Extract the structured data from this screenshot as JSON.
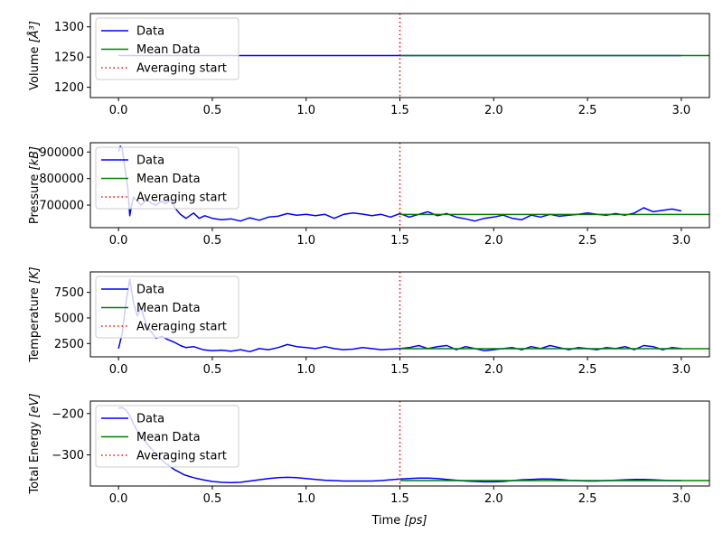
{
  "figure": {
    "xlabel": "Time [ps]",
    "xlabel_main": "Time ",
    "xlabel_unit": "[ps]"
  },
  "colors": {
    "data": "#0000ff",
    "mean": "#008000",
    "avg_start": "#ff0000",
    "axis": "#000000"
  },
  "chart_data": [
    {
      "type": "line",
      "ylabel": "Volume [Å³]",
      "ylabel_main": "Volume ",
      "ylabel_unit": "[Å³]",
      "xlim": [
        -0.15,
        3.15
      ],
      "ylim": [
        1183,
        1322
      ],
      "xticks": [
        0.0,
        0.5,
        1.0,
        1.5,
        2.0,
        2.5,
        3.0
      ],
      "xtick_labels": [
        "0.0",
        "0.5",
        "1.0",
        "1.5",
        "2.0",
        "2.5",
        "3.0"
      ],
      "yticks": [
        1200,
        1250,
        1300
      ],
      "ytick_labels": [
        "1200",
        "1250",
        "1300"
      ],
      "legend": {
        "placement": "upper-left",
        "entries": [
          "Data",
          "Mean Data",
          "Averaging start"
        ]
      },
      "averaging_start": 1.5,
      "mean_value": 1252.5,
      "mean_x_range": [
        1.5,
        3.15
      ],
      "series": [
        {
          "name": "Data",
          "x": [
            0.0,
            0.5,
            1.0,
            1.5,
            2.0,
            2.5,
            3.0
          ],
          "y": [
            1252.5,
            1252.5,
            1252.5,
            1252.5,
            1252.5,
            1252.5,
            1252.5
          ]
        }
      ]
    },
    {
      "type": "line",
      "ylabel": "Pressure [kB]",
      "ylabel_main": "Pressure ",
      "ylabel_unit": "[kB]",
      "xlim": [
        -0.15,
        3.15
      ],
      "ylim": [
        615000,
        935000
      ],
      "xticks": [
        0.0,
        0.5,
        1.0,
        1.5,
        2.0,
        2.5,
        3.0
      ],
      "xtick_labels": [
        "0.0",
        "0.5",
        "1.0",
        "1.5",
        "2.0",
        "2.5",
        "3.0"
      ],
      "yticks": [
        700000,
        800000,
        900000
      ],
      "ytick_labels": [
        "700000",
        "800000",
        "900000"
      ],
      "legend": {
        "placement": "upper-left",
        "entries": [
          "Data",
          "Mean Data",
          "Averaging start"
        ]
      },
      "averaging_start": 1.5,
      "mean_value": 665000,
      "mean_x_range": [
        1.5,
        3.15
      ],
      "series": [
        {
          "name": "Data",
          "x": [
            0.0,
            0.01,
            0.02,
            0.03,
            0.05,
            0.06,
            0.07,
            0.08,
            0.1,
            0.12,
            0.15,
            0.18,
            0.2,
            0.23,
            0.25,
            0.28,
            0.3,
            0.33,
            0.36,
            0.4,
            0.43,
            0.46,
            0.5,
            0.55,
            0.6,
            0.65,
            0.7,
            0.75,
            0.8,
            0.85,
            0.9,
            0.95,
            1.0,
            1.05,
            1.1,
            1.15,
            1.2,
            1.25,
            1.3,
            1.35,
            1.4,
            1.45,
            1.5,
            1.55,
            1.6,
            1.65,
            1.7,
            1.75,
            1.8,
            1.85,
            1.9,
            1.95,
            2.0,
            2.05,
            2.1,
            2.15,
            2.2,
            2.25,
            2.3,
            2.35,
            2.4,
            2.45,
            2.5,
            2.55,
            2.6,
            2.65,
            2.7,
            2.75,
            2.8,
            2.85,
            2.9,
            2.95,
            3.0
          ],
          "y": [
            900000,
            922000,
            910000,
            860000,
            760000,
            660000,
            700000,
            730000,
            715000,
            700000,
            720000,
            705000,
            700000,
            715000,
            705000,
            720000,
            690000,
            665000,
            650000,
            670000,
            650000,
            660000,
            650000,
            645000,
            648000,
            640000,
            652000,
            643000,
            655000,
            658000,
            668000,
            662000,
            665000,
            660000,
            665000,
            650000,
            665000,
            670000,
            666000,
            660000,
            665000,
            655000,
            668000,
            655000,
            665000,
            675000,
            660000,
            668000,
            655000,
            648000,
            640000,
            650000,
            655000,
            662000,
            650000,
            645000,
            662000,
            655000,
            665000,
            658000,
            662000,
            665000,
            670000,
            665000,
            662000,
            668000,
            662000,
            670000,
            690000,
            675000,
            680000,
            685000,
            678000
          ]
        }
      ]
    },
    {
      "type": "line",
      "ylabel": "Temperature [K]",
      "ylabel_main": "Temperature ",
      "ylabel_unit": "[K]",
      "xlim": [
        -0.15,
        3.15
      ],
      "ylim": [
        1200,
        9500
      ],
      "xticks": [
        0.0,
        0.5,
        1.0,
        1.5,
        2.0,
        2.5,
        3.0
      ],
      "xtick_labels": [
        "0.0",
        "0.5",
        "1.0",
        "1.5",
        "2.0",
        "2.5",
        "3.0"
      ],
      "yticks": [
        2500,
        5000,
        7500
      ],
      "ytick_labels": [
        "2500",
        "5000",
        "7500"
      ],
      "legend": {
        "placement": "upper-left",
        "entries": [
          "Data",
          "Mean Data",
          "Averaging start"
        ]
      },
      "averaging_start": 1.5,
      "mean_value": 2000,
      "mean_x_range": [
        1.5,
        3.15
      ],
      "series": [
        {
          "name": "Data",
          "x": [
            0.0,
            0.02,
            0.04,
            0.06,
            0.08,
            0.1,
            0.12,
            0.15,
            0.18,
            0.2,
            0.23,
            0.26,
            0.3,
            0.33,
            0.36,
            0.4,
            0.45,
            0.5,
            0.55,
            0.6,
            0.65,
            0.7,
            0.75,
            0.8,
            0.85,
            0.9,
            0.95,
            1.0,
            1.05,
            1.1,
            1.15,
            1.2,
            1.25,
            1.3,
            1.35,
            1.4,
            1.45,
            1.5,
            1.55,
            1.6,
            1.65,
            1.7,
            1.75,
            1.8,
            1.85,
            1.9,
            1.95,
            2.0,
            2.05,
            2.1,
            2.15,
            2.2,
            2.25,
            2.3,
            2.35,
            2.4,
            2.45,
            2.5,
            2.55,
            2.6,
            2.65,
            2.7,
            2.75,
            2.8,
            2.85,
            2.9,
            2.95,
            3.0
          ],
          "y": [
            2000,
            3500,
            6500,
            8800,
            6500,
            5200,
            6000,
            4200,
            3500,
            3000,
            3200,
            2900,
            2600,
            2300,
            2100,
            2200,
            1900,
            1800,
            1850,
            1750,
            1900,
            1700,
            2000,
            1900,
            2100,
            2400,
            2200,
            2100,
            2000,
            2200,
            2000,
            1900,
            1950,
            2100,
            2000,
            1900,
            1950,
            2000,
            2100,
            2300,
            2000,
            2200,
            2300,
            1900,
            2200,
            2000,
            1800,
            1900,
            2000,
            2100,
            1900,
            2200,
            2000,
            2300,
            2100,
            1900,
            2100,
            2000,
            1900,
            2100,
            2000,
            2200,
            1900,
            2300,
            2200,
            1900,
            2100,
            2000
          ]
        }
      ]
    },
    {
      "type": "line",
      "ylabel": "Total Energy [eV]",
      "ylabel_main": "Total Energy ",
      "ylabel_unit": "[eV]",
      "xlim": [
        -0.15,
        3.15
      ],
      "ylim": [
        -375,
        -170
      ],
      "xticks": [
        0.0,
        0.5,
        1.0,
        1.5,
        2.0,
        2.5,
        3.0
      ],
      "xtick_labels": [
        "0.0",
        "0.5",
        "1.0",
        "1.5",
        "2.0",
        "2.5",
        "3.0"
      ],
      "yticks": [
        -300,
        -200
      ],
      "ytick_labels": [
        "−300",
        "−200"
      ],
      "legend": {
        "placement": "upper-left",
        "entries": [
          "Data",
          "Mean Data",
          "Averaging start"
        ]
      },
      "averaging_start": 1.5,
      "mean_value": -362,
      "mean_x_range": [
        1.5,
        3.15
      ],
      "series": [
        {
          "name": "Data",
          "x": [
            0.0,
            0.02,
            0.04,
            0.06,
            0.08,
            0.1,
            0.15,
            0.2,
            0.25,
            0.3,
            0.35,
            0.4,
            0.45,
            0.5,
            0.55,
            0.6,
            0.65,
            0.7,
            0.75,
            0.8,
            0.85,
            0.9,
            0.95,
            1.0,
            1.05,
            1.1,
            1.15,
            1.2,
            1.25,
            1.3,
            1.35,
            1.4,
            1.45,
            1.5,
            1.55,
            1.6,
            1.65,
            1.7,
            1.75,
            1.8,
            1.85,
            1.9,
            1.95,
            2.0,
            2.05,
            2.1,
            2.15,
            2.2,
            2.25,
            2.3,
            2.35,
            2.4,
            2.45,
            2.5,
            2.55,
            2.6,
            2.65,
            2.7,
            2.75,
            2.8,
            2.85,
            2.9,
            2.95,
            3.0
          ],
          "y": [
            -187,
            -186,
            -192,
            -205,
            -225,
            -242,
            -272,
            -298,
            -320,
            -336,
            -348,
            -355,
            -360,
            -364,
            -366,
            -367,
            -366,
            -363,
            -360,
            -357,
            -355,
            -354,
            -355,
            -357,
            -359,
            -361,
            -362,
            -363,
            -363,
            -363,
            -363,
            -362,
            -360,
            -358,
            -357,
            -356,
            -356,
            -357,
            -359,
            -361,
            -363,
            -364,
            -365,
            -365,
            -364,
            -362,
            -360,
            -359,
            -358,
            -358,
            -359,
            -361,
            -362,
            -363,
            -363,
            -362,
            -361,
            -360,
            -359,
            -359,
            -360,
            -361,
            -362,
            -362
          ]
        }
      ]
    }
  ]
}
